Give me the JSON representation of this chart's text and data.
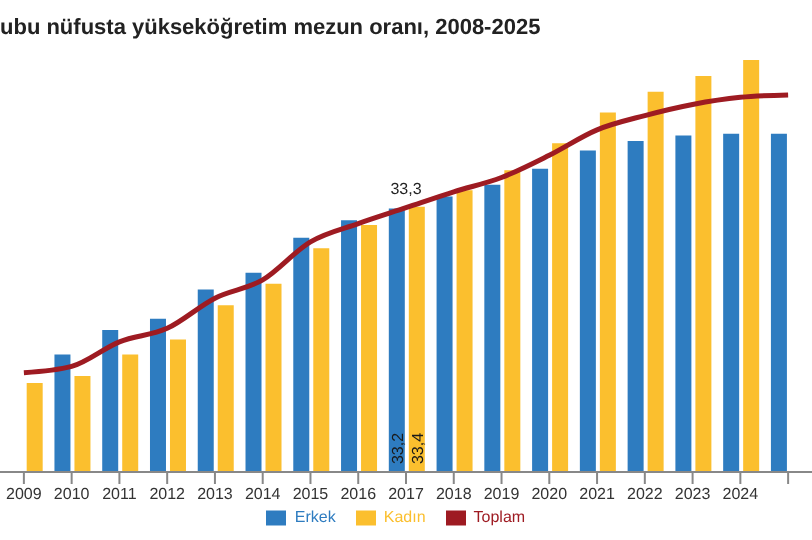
{
  "chart_data": {
    "type": "bar",
    "title": "ubu nüfusta yükseköğretim mezun oranı, 2008-2025",
    "categories": [
      "2009",
      "2010",
      "2011",
      "2012",
      "2013",
      "2014",
      "2015",
      "2016",
      "2017",
      "2018",
      "2019",
      "2020",
      "2021",
      "2022",
      "2023",
      "2024",
      null
    ],
    "series": [
      {
        "name": "Erkek",
        "color": "#2e7cc0",
        "values": [
          null,
          14.8,
          17.9,
          19.3,
          23.0,
          25.1,
          29.5,
          31.7,
          33.2,
          34.7,
          36.2,
          38.2,
          40.5,
          41.7,
          42.4,
          42.6,
          42.6
        ],
        "value_labels": [
          null,
          null,
          null,
          null,
          null,
          null,
          null,
          null,
          "33,2",
          null,
          null,
          null,
          null,
          null,
          null,
          null,
          null
        ]
      },
      {
        "name": "Kadın",
        "color": "#fbbf2e",
        "values": [
          11.2,
          12.1,
          14.8,
          16.7,
          21.0,
          23.7,
          28.2,
          31.1,
          33.4,
          35.5,
          38.0,
          41.4,
          45.3,
          47.9,
          49.9,
          51.9,
          null
        ],
        "value_labels": [
          null,
          null,
          null,
          null,
          null,
          null,
          null,
          null,
          "33,4",
          null,
          null,
          null,
          null,
          null,
          null,
          null,
          null
        ]
      },
      {
        "name": "Toplam",
        "type": "line",
        "color": "#9e1b22",
        "values": [
          12.5,
          13.3,
          16.4,
          18.1,
          21.9,
          24.2,
          29.0,
          31.3,
          33.3,
          35.3,
          37.1,
          39.9,
          43.1,
          44.9,
          46.3,
          47.2,
          47.5
        ],
        "value_labels": [
          null,
          null,
          null,
          null,
          null,
          null,
          null,
          null,
          "33,3",
          null,
          null,
          null,
          null,
          null,
          null,
          null,
          null
        ]
      }
    ],
    "legend": "bottom",
    "marker": "none",
    "grid": false
  }
}
